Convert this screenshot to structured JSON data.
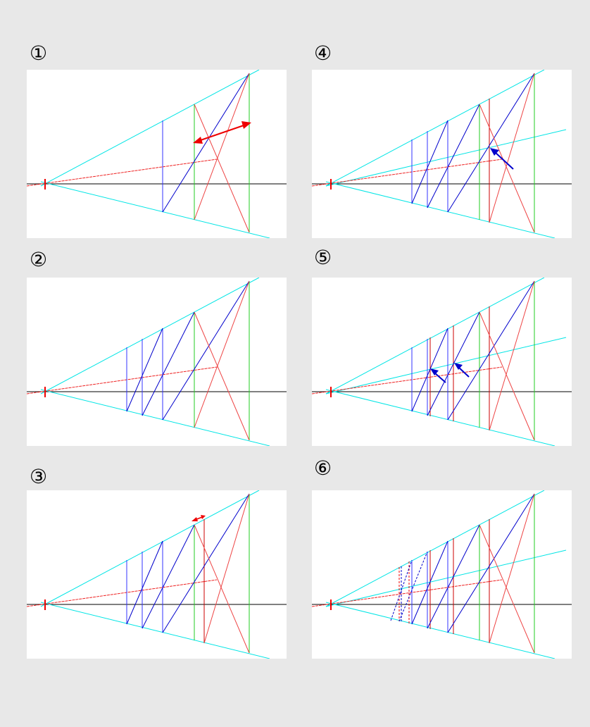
{
  "panels": [
    {
      "label": "①"
    },
    {
      "label": "④"
    },
    {
      "label": "②"
    },
    {
      "label": "⑤"
    },
    {
      "label": "③"
    },
    {
      "label": "⑥"
    }
  ],
  "colors": {
    "background": "#e8e8e8",
    "panel": "#ffffff",
    "horizon": "#000000",
    "perspective": "#00e5e5",
    "diagonal": "#0000cc",
    "vertical_blue": "#3333ff",
    "vertical_green": "#22cc22",
    "red": "#ee2222",
    "arrow_blue": "#0000cc",
    "arrow_red": "#ee0000"
  }
}
